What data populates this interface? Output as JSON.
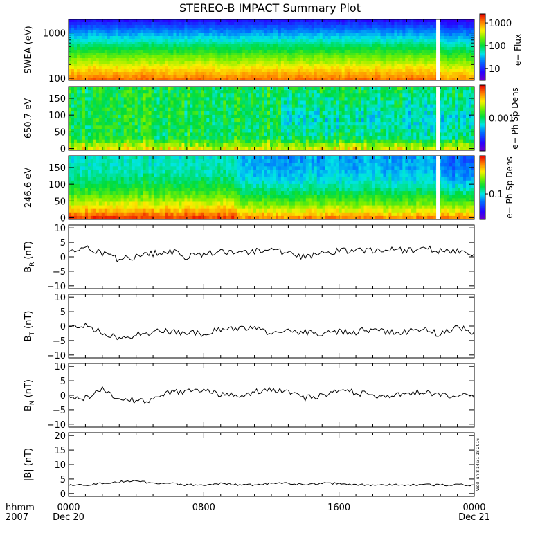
{
  "title": "STEREO-B IMPACT Summary Plot",
  "timestamp": "Wed Jun  8 14:31:18 2016",
  "footer": {
    "row1": "hhmm",
    "row2": "2007",
    "ticks": [
      {
        "hour": 0,
        "top": "0000",
        "bottom": "Dec 20"
      },
      {
        "hour": 8,
        "top": "0800",
        "bottom": ""
      },
      {
        "hour": 16,
        "top": "1600",
        "bottom": ""
      },
      {
        "hour": 24,
        "top": "0000",
        "bottom": "Dec 21"
      }
    ]
  },
  "colors": {
    "line": "#000000",
    "gap": "#ffffff"
  },
  "chart_data": [
    {
      "id": "swea",
      "type": "heatmap",
      "ylabel": "SWEA (eV)",
      "yscale": "log",
      "ylim": [
        90,
        2000
      ],
      "yticks": [
        {
          "v": 100,
          "label": "100"
        },
        {
          "v": 1000,
          "label": "1000"
        }
      ],
      "colorbar": {
        "label": "e− Flux",
        "scale": "log",
        "range": [
          3,
          2500
        ],
        "ticks": [
          {
            "v": 10,
            "label": "10"
          },
          {
            "v": 100,
            "label": "100"
          },
          {
            "v": 1000,
            "label": "1000"
          }
        ]
      },
      "data_gap_hours": [
        21.75,
        21.98
      ],
      "energy_levels_eV": [
        100,
        150,
        250,
        400,
        650,
        1000,
        1500,
        2000
      ],
      "typical_flux": [
        1200,
        700,
        250,
        90,
        40,
        20,
        10,
        5
      ]
    },
    {
      "id": "pad650",
      "type": "heatmap",
      "ylabel": "650.7 eV",
      "ylim": [
        -5,
        185
      ],
      "yticks": [
        {
          "v": 0,
          "label": "0"
        },
        {
          "v": 50,
          "label": "50"
        },
        {
          "v": 100,
          "label": "100"
        },
        {
          "v": 150,
          "label": "150"
        }
      ],
      "colorbar": {
        "label": "e− Ph Sp Dens",
        "scale": "log",
        "range": [
          0.0001,
          0.01
        ],
        "ticks": [
          {
            "v": 0.001,
            "label": "0.001"
          }
        ]
      },
      "data_gap_hours": [
        21.75,
        21.98
      ]
    },
    {
      "id": "pad246",
      "type": "heatmap",
      "ylabel": "246.6 eV",
      "ylim": [
        -5,
        185
      ],
      "yticks": [
        {
          "v": 0,
          "label": "0"
        },
        {
          "v": 50,
          "label": "50"
        },
        {
          "v": 100,
          "label": "100"
        },
        {
          "v": 150,
          "label": "150"
        }
      ],
      "colorbar": {
        "label": "e− Ph Sp Dens",
        "scale": "log",
        "range": [
          0.03,
          0.6
        ],
        "ticks": [
          {
            "v": 0.1,
            "label": "0.1"
          }
        ]
      },
      "data_gap_hours": [
        21.75,
        21.98
      ]
    },
    {
      "id": "br",
      "type": "line",
      "ylabel_main": "B",
      "ylabel_sub": "R",
      "ylabel_unit": "(nT)",
      "ylim": [
        -11,
        11
      ],
      "yticks": [
        {
          "v": -10,
          "label": "−10"
        },
        {
          "v": -5,
          "label": "−5"
        },
        {
          "v": 0,
          "label": "0"
        },
        {
          "v": 5,
          "label": "5"
        },
        {
          "v": 10,
          "label": "10"
        }
      ],
      "x_hours": [
        0,
        1,
        2,
        3,
        4,
        5,
        6,
        7,
        8,
        9,
        10,
        11,
        12,
        13,
        14,
        15,
        16,
        17,
        18,
        19,
        20,
        21,
        22,
        23,
        24
      ],
      "values": [
        2,
        3,
        1,
        -1,
        0,
        1,
        2,
        0,
        1,
        2,
        1,
        2,
        3,
        1,
        0,
        1,
        2,
        2,
        2,
        3,
        2,
        3,
        2,
        2,
        1
      ]
    },
    {
      "id": "bt",
      "type": "line",
      "ylabel_main": "B",
      "ylabel_sub": "T",
      "ylabel_unit": "(nT)",
      "ylim": [
        -11,
        11
      ],
      "yticks": [
        {
          "v": -10,
          "label": "−10"
        },
        {
          "v": -5,
          "label": "−5"
        },
        {
          "v": 0,
          "label": "0"
        },
        {
          "v": 5,
          "label": "5"
        },
        {
          "v": 10,
          "label": "10"
        }
      ],
      "x_hours": [
        0,
        1,
        2,
        3,
        4,
        5,
        6,
        7,
        8,
        9,
        10,
        11,
        12,
        13,
        14,
        15,
        16,
        17,
        18,
        19,
        20,
        21,
        22,
        23,
        24
      ],
      "values": [
        -1,
        0,
        -2,
        -4,
        -3,
        -2,
        -2,
        -2,
        -3,
        -1,
        -1,
        0,
        -3,
        -2,
        -2,
        -3,
        -2,
        -2,
        -1,
        -2,
        -2,
        -1,
        -3,
        0,
        -2
      ]
    },
    {
      "id": "bn",
      "type": "line",
      "ylabel_main": "B",
      "ylabel_sub": "N",
      "ylabel_unit": "(nT)",
      "ylim": [
        -11,
        11
      ],
      "yticks": [
        {
          "v": -10,
          "label": "−10"
        },
        {
          "v": -5,
          "label": "−5"
        },
        {
          "v": 0,
          "label": "0"
        },
        {
          "v": 5,
          "label": "5"
        },
        {
          "v": 10,
          "label": "10"
        }
      ],
      "x_hours": [
        0,
        1,
        2,
        3,
        4,
        5,
        6,
        7,
        8,
        9,
        10,
        11,
        12,
        13,
        14,
        15,
        16,
        17,
        18,
        19,
        20,
        21,
        22,
        23,
        24
      ],
      "values": [
        0,
        -1,
        2,
        -1,
        -2,
        -2,
        1,
        1,
        2,
        0,
        0,
        1,
        2,
        1,
        -1,
        0,
        2,
        1,
        0,
        0,
        1,
        1,
        0,
        0,
        -1
      ]
    },
    {
      "id": "bmag",
      "type": "line",
      "ylabel": "|B| (nT)",
      "ylim": [
        -1,
        21
      ],
      "yticks": [
        {
          "v": 0,
          "label": "0"
        },
        {
          "v": 5,
          "label": "5"
        },
        {
          "v": 10,
          "label": "10"
        },
        {
          "v": 15,
          "label": "15"
        },
        {
          "v": 20,
          "label": "20"
        }
      ],
      "x_hours": [
        0,
        1,
        2,
        3,
        4,
        5,
        6,
        7,
        8,
        9,
        10,
        11,
        12,
        13,
        14,
        15,
        16,
        17,
        18,
        19,
        20,
        21,
        22,
        23,
        24
      ],
      "values": [
        3,
        3,
        3.5,
        4,
        4.5,
        3.5,
        3.5,
        3,
        3,
        3.5,
        3,
        3,
        3.5,
        3.5,
        3,
        3.5,
        3.5,
        3,
        3,
        3,
        3,
        3,
        3,
        3,
        3
      ]
    }
  ]
}
